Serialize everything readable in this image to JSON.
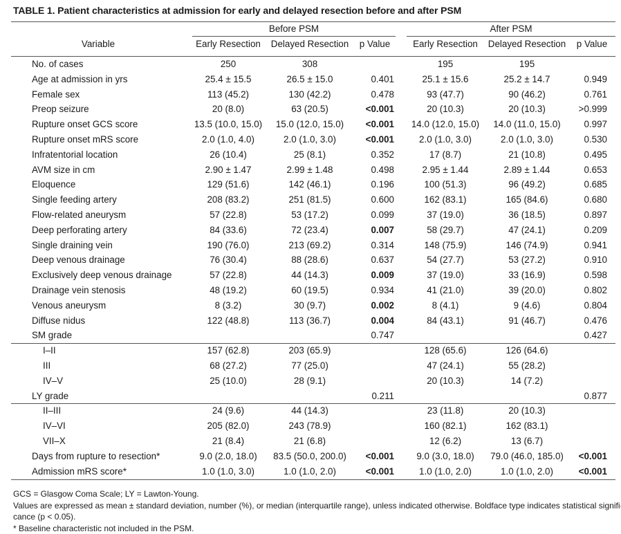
{
  "title": "TABLE 1. Patient characteristics at admission for early and delayed resection before and after PSM",
  "header": {
    "group_before": "Before PSM",
    "group_after": "After PSM",
    "variable": "Variable",
    "early": "Early Resection",
    "delayed": "Delayed Resection",
    "p": "p Value"
  },
  "rows": [
    {
      "variable": "No. of cases",
      "indent": false,
      "before_early": "250",
      "before_delayed": "308",
      "before_p": "",
      "before_p_bold": false,
      "after_early": "195",
      "after_delayed": "195",
      "after_p": "",
      "after_p_bold": false
    },
    {
      "variable": "Age at admission in yrs",
      "indent": false,
      "before_early": "25.4 ± 15.5",
      "before_delayed": "26.5 ± 15.0",
      "before_p": "0.401",
      "before_p_bold": false,
      "after_early": "25.1 ± 15.6",
      "after_delayed": "25.2 ± 14.7",
      "after_p": "0.949",
      "after_p_bold": false
    },
    {
      "variable": "Female sex",
      "indent": false,
      "before_early": "113 (45.2)",
      "before_delayed": "130 (42.2)",
      "before_p": "0.478",
      "before_p_bold": false,
      "after_early": "93 (47.7)",
      "after_delayed": "90 (46.2)",
      "after_p": "0.761",
      "after_p_bold": false
    },
    {
      "variable": "Preop seizure",
      "indent": false,
      "before_early": "20 (8.0)",
      "before_delayed": "63 (20.5)",
      "before_p": "<0.001",
      "before_p_bold": true,
      "after_early": "20 (10.3)",
      "after_delayed": "20 (10.3)",
      "after_p": ">0.999",
      "after_p_bold": false
    },
    {
      "variable": "Rupture onset GCS score",
      "indent": false,
      "before_early": "13.5 (10.0, 15.0)",
      "before_delayed": "15.0 (12.0, 15.0)",
      "before_p": "<0.001",
      "before_p_bold": true,
      "after_early": "14.0 (12.0, 15.0)",
      "after_delayed": "14.0 (11.0, 15.0)",
      "after_p": "0.997",
      "after_p_bold": false
    },
    {
      "variable": "Rupture onset mRS score",
      "indent": false,
      "before_early": "2.0 (1.0, 4.0)",
      "before_delayed": "2.0 (1.0, 3.0)",
      "before_p": "<0.001",
      "before_p_bold": true,
      "after_early": "2.0 (1.0, 3.0)",
      "after_delayed": "2.0 (1.0, 3.0)",
      "after_p": "0.530",
      "after_p_bold": false
    },
    {
      "variable": "Infratentorial location",
      "indent": false,
      "before_early": "26 (10.4)",
      "before_delayed": "25 (8.1)",
      "before_p": "0.352",
      "before_p_bold": false,
      "after_early": "17 (8.7)",
      "after_delayed": "21 (10.8)",
      "after_p": "0.495",
      "after_p_bold": false
    },
    {
      "variable": "AVM size in cm",
      "indent": false,
      "before_early": "2.90 ± 1.47",
      "before_delayed": "2.99 ± 1.48",
      "before_p": "0.498",
      "before_p_bold": false,
      "after_early": "2.95 ± 1.44",
      "after_delayed": "2.89 ± 1.44",
      "after_p": "0.653",
      "after_p_bold": false
    },
    {
      "variable": "Eloquence",
      "indent": false,
      "before_early": "129 (51.6)",
      "before_delayed": "142 (46.1)",
      "before_p": "0.196",
      "before_p_bold": false,
      "after_early": "100 (51.3)",
      "after_delayed": "96 (49.2)",
      "after_p": "0.685",
      "after_p_bold": false
    },
    {
      "variable": "Single feeding artery",
      "indent": false,
      "before_early": "208 (83.2)",
      "before_delayed": "251 (81.5)",
      "before_p": "0.600",
      "before_p_bold": false,
      "after_early": "162 (83.1)",
      "after_delayed": "165 (84.6)",
      "after_p": "0.680",
      "after_p_bold": false
    },
    {
      "variable": "Flow-related aneurysm",
      "indent": false,
      "before_early": "57 (22.8)",
      "before_delayed": "53 (17.2)",
      "before_p": "0.099",
      "before_p_bold": false,
      "after_early": "37 (19.0)",
      "after_delayed": "36 (18.5)",
      "after_p": "0.897",
      "after_p_bold": false
    },
    {
      "variable": "Deep perforating artery",
      "indent": false,
      "before_early": "84 (33.6)",
      "before_delayed": "72 (23.4)",
      "before_p": "0.007",
      "before_p_bold": true,
      "after_early": "58 (29.7)",
      "after_delayed": "47 (24.1)",
      "after_p": "0.209",
      "after_p_bold": false
    },
    {
      "variable": "Single draining vein",
      "indent": false,
      "before_early": "190 (76.0)",
      "before_delayed": "213 (69.2)",
      "before_p": "0.314",
      "before_p_bold": false,
      "after_early": "148 (75.9)",
      "after_delayed": "146 (74.9)",
      "after_p": "0.941",
      "after_p_bold": false
    },
    {
      "variable": "Deep venous drainage",
      "indent": false,
      "before_early": "76 (30.4)",
      "before_delayed": "88 (28.6)",
      "before_p": "0.637",
      "before_p_bold": false,
      "after_early": "54 (27.7)",
      "after_delayed": "53 (27.2)",
      "after_p": "0.910",
      "after_p_bold": false
    },
    {
      "variable": "Exclusively deep venous drainage",
      "indent": false,
      "before_early": "57 (22.8)",
      "before_delayed": "44 (14.3)",
      "before_p": "0.009",
      "before_p_bold": true,
      "after_early": "37 (19.0)",
      "after_delayed": "33 (16.9)",
      "after_p": "0.598",
      "after_p_bold": false
    },
    {
      "variable": "Drainage vein stenosis",
      "indent": false,
      "before_early": "48 (19.2)",
      "before_delayed": "60 (19.5)",
      "before_p": "0.934",
      "before_p_bold": false,
      "after_early": "41 (21.0)",
      "after_delayed": "39 (20.0)",
      "after_p": "0.802",
      "after_p_bold": false
    },
    {
      "variable": "Venous aneurysm",
      "indent": false,
      "before_early": "8 (3.2)",
      "before_delayed": "30 (9.7)",
      "before_p": "0.002",
      "before_p_bold": true,
      "after_early": "8 (4.1)",
      "after_delayed": "9 (4.6)",
      "after_p": "0.804",
      "after_p_bold": false
    },
    {
      "variable": "Diffuse nidus",
      "indent": false,
      "before_early": "122 (48.8)",
      "before_delayed": "113 (36.7)",
      "before_p": "0.004",
      "before_p_bold": true,
      "after_early": "84 (43.1)",
      "after_delayed": "91 (46.7)",
      "after_p": "0.476",
      "after_p_bold": false
    },
    {
      "variable": "SM grade",
      "indent": false,
      "before_early": "",
      "before_delayed": "",
      "before_p": "0.747",
      "before_p_bold": false,
      "after_early": "",
      "after_delayed": "",
      "after_p": "0.427",
      "after_p_bold": false,
      "rule_below": true
    },
    {
      "variable": "I–II",
      "indent": true,
      "before_early": "157 (62.8)",
      "before_delayed": "203 (65.9)",
      "before_p": "",
      "before_p_bold": false,
      "after_early": "128 (65.6)",
      "after_delayed": "126 (64.6)",
      "after_p": "",
      "after_p_bold": false
    },
    {
      "variable": "III",
      "indent": true,
      "before_early": "68 (27.2)",
      "before_delayed": "77 (25.0)",
      "before_p": "",
      "before_p_bold": false,
      "after_early": "47 (24.1)",
      "after_delayed": "55 (28.2)",
      "after_p": "",
      "after_p_bold": false
    },
    {
      "variable": "IV–V",
      "indent": true,
      "before_early": "25 (10.0)",
      "before_delayed": "28 (9.1)",
      "before_p": "",
      "before_p_bold": false,
      "after_early": "20 (10.3)",
      "after_delayed": "14 (7.2)",
      "after_p": "",
      "after_p_bold": false
    },
    {
      "variable": "LY grade",
      "indent": false,
      "before_early": "",
      "before_delayed": "",
      "before_p": "0.211",
      "before_p_bold": false,
      "after_early": "",
      "after_delayed": "",
      "after_p": "0.877",
      "after_p_bold": false,
      "rule_below": true
    },
    {
      "variable": "II–III",
      "indent": true,
      "before_early": "24 (9.6)",
      "before_delayed": "44 (14.3)",
      "before_p": "",
      "before_p_bold": false,
      "after_early": "23 (11.8)",
      "after_delayed": "20 (10.3)",
      "after_p": "",
      "after_p_bold": false
    },
    {
      "variable": "IV–VI",
      "indent": true,
      "before_early": "205 (82.0)",
      "before_delayed": "243 (78.9)",
      "before_p": "",
      "before_p_bold": false,
      "after_early": "160 (82.1)",
      "after_delayed": "162 (83.1)",
      "after_p": "",
      "after_p_bold": false
    },
    {
      "variable": "VII–X",
      "indent": true,
      "before_early": "21 (8.4)",
      "before_delayed": "21 (6.8)",
      "before_p": "",
      "before_p_bold": false,
      "after_early": "12 (6.2)",
      "after_delayed": "13 (6.7)",
      "after_p": "",
      "after_p_bold": false
    },
    {
      "variable": "Days from rupture to resection*",
      "indent": false,
      "before_early": "9.0 (2.0, 18.0)",
      "before_delayed": "83.5 (50.0, 200.0)",
      "before_p": "<0.001",
      "before_p_bold": true,
      "after_early": "9.0 (3.0, 18.0)",
      "after_delayed": "79.0 (46.0, 185.0)",
      "after_p": "<0.001",
      "after_p_bold": true
    },
    {
      "variable": "Admission mRS score*",
      "indent": false,
      "before_early": "1.0 (1.0, 3.0)",
      "before_delayed": "1.0 (1.0, 2.0)",
      "before_p": "<0.001",
      "before_p_bold": true,
      "after_early": "1.0 (1.0, 2.0)",
      "after_delayed": "1.0 (1.0, 2.0)",
      "after_p": "<0.001",
      "after_p_bold": true
    }
  ],
  "footnotes": [
    "GCS = Glasgow Coma Scale; LY = Lawton-Young.",
    "Values are expressed as mean ± standard deviation, number (%), or median (interquartile range), unless indicated otherwise. Boldface type indicates statistical signifi-",
    "cance (p < 0.05).",
    "* Baseline characteristic not included in the PSM."
  ]
}
